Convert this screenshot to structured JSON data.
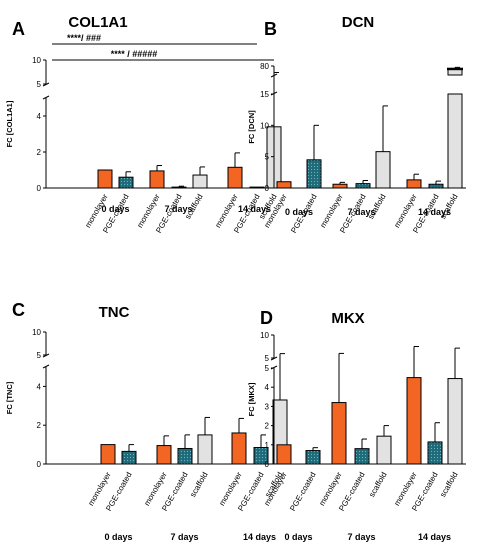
{
  "colors": {
    "monolayer": "#f26522",
    "pge": "#1f6b7a",
    "scaffold": "#e2e2e2",
    "edge": "#000000"
  },
  "chart_data": [
    {
      "type": "bar",
      "panel_letter": "A",
      "title": "COL1A1",
      "ylabel": "FC [COL1A1]",
      "axis": {
        "lower_range": [
          0,
          5
        ],
        "lower_ticks": [
          0,
          2,
          4
        ],
        "upper_range": [
          5,
          10
        ],
        "upper_ticks": [
          5,
          10
        ]
      },
      "groups": [
        {
          "label": "0 days",
          "bars": [
            {
              "category": "monolayer",
              "kind": "monolayer",
              "value": 1.0,
              "error": 0
            },
            {
              "category": "PGE-coated",
              "kind": "pge",
              "value": 0.6,
              "error": 0.3
            }
          ]
        },
        {
          "label": "7 days",
          "bars": [
            {
              "category": "monolayer",
              "kind": "monolayer",
              "value": 0.95,
              "error": 0.3
            },
            {
              "category": "PGE-coated",
              "kind": "pge",
              "value": 0.05,
              "error": 0.05
            },
            {
              "category": "scaffold",
              "kind": "scaffold",
              "value": 0.72,
              "error": 0.45
            }
          ]
        },
        {
          "label": "14 days",
          "bars": [
            {
              "category": "monolayer",
              "kind": "monolayer",
              "value": 1.15,
              "error": 0.8
            },
            {
              "category": "PGE-coated",
              "kind": "pge",
              "value": 0.05,
              "error": 0
            },
            {
              "category": "scaffold",
              "kind": "scaffold",
              "value": 3.4,
              "error": 4.0
            }
          ]
        }
      ],
      "annotations": [
        {
          "text": "****/ ###",
          "from_bar": 0,
          "to_bar": 6
        },
        {
          "text": "**** / #####",
          "from_bar": 0,
          "to_bar": 7
        }
      ]
    },
    {
      "type": "bar",
      "panel_letter": "B",
      "title": "DCN",
      "ylabel": "FC [DCN]",
      "axis": {
        "lower_range": [
          0,
          15
        ],
        "lower_ticks": [
          0,
          5,
          10,
          15
        ],
        "upper_range": [
          60,
          80
        ],
        "upper_ticks": [
          80
        ]
      },
      "groups": [
        {
          "label": "0 days",
          "bars": [
            {
              "category": "monolayer",
              "kind": "monolayer",
              "value": 1.0,
              "error": 0
            },
            {
              "category": "PGE-coated",
              "kind": "pge",
              "value": 4.5,
              "error": 5.5
            }
          ]
        },
        {
          "label": "7 days",
          "bars": [
            {
              "category": "monolayer",
              "kind": "monolayer",
              "value": 0.6,
              "error": 0.3
            },
            {
              "category": "PGE-coated",
              "kind": "pge",
              "value": 0.7,
              "error": 0.5
            },
            {
              "category": "scaffold",
              "kind": "scaffold",
              "value": 5.8,
              "error": 7.3
            }
          ]
        },
        {
          "label": "14 days",
          "bars": [
            {
              "category": "monolayer",
              "kind": "monolayer",
              "value": 1.3,
              "error": 0.9
            },
            {
              "category": "PGE-coated",
              "kind": "pge",
              "value": 0.6,
              "error": 0.5
            },
            {
              "category": "scaffold",
              "kind": "scaffold",
              "value": 74,
              "error": 3
            }
          ]
        }
      ]
    },
    {
      "type": "bar",
      "panel_letter": "C",
      "title": "TNC",
      "ylabel": "FC [TNC]",
      "axis": {
        "lower_range": [
          0,
          5
        ],
        "lower_ticks": [
          0,
          2,
          4
        ],
        "upper_range": [
          5,
          10
        ],
        "upper_ticks": [
          5,
          10
        ]
      },
      "groups": [
        {
          "label": "0 days",
          "bars": [
            {
              "category": "monolayer",
              "kind": "monolayer",
              "value": 1.0,
              "error": 0
            },
            {
              "category": "PGE-coated",
              "kind": "pge",
              "value": 0.65,
              "error": 0.35
            }
          ]
        },
        {
          "label": "7 days",
          "bars": [
            {
              "category": "monolayer",
              "kind": "monolayer",
              "value": 0.95,
              "error": 0.5
            },
            {
              "category": "PGE-coated",
              "kind": "pge",
              "value": 0.8,
              "error": 0.7
            },
            {
              "category": "scaffold",
              "kind": "scaffold",
              "value": 1.5,
              "error": 0.9
            }
          ]
        },
        {
          "label": "14 days",
          "bars": [
            {
              "category": "monolayer",
              "kind": "monolayer",
              "value": 1.6,
              "error": 0.75
            },
            {
              "category": "PGE-coated",
              "kind": "pge",
              "value": 0.85,
              "error": 0.65
            },
            {
              "category": "scaffold",
              "kind": "scaffold",
              "value": 3.3,
              "error": 2.0
            }
          ]
        }
      ]
    },
    {
      "type": "bar",
      "panel_letter": "D",
      "title": "MKX",
      "ylabel": "FC [MKX]",
      "axis": {
        "lower_range": [
          0,
          5
        ],
        "lower_ticks": [
          0,
          1,
          2,
          3,
          4,
          5
        ],
        "upper_range": [
          5,
          10
        ],
        "upper_ticks": [
          5,
          10
        ]
      },
      "groups": [
        {
          "label": "0 days",
          "bars": [
            {
              "category": "monolayer",
              "kind": "monolayer",
              "value": 1.0,
              "error": 0
            },
            {
              "category": "PGE-coated",
              "kind": "pge",
              "value": 0.7,
              "error": 0.15
            }
          ]
        },
        {
          "label": "7 days",
          "bars": [
            {
              "category": "monolayer",
              "kind": "monolayer",
              "value": 3.2,
              "error": 2.8
            },
            {
              "category": "PGE-coated",
              "kind": "pge",
              "value": 0.8,
              "error": 0.5
            },
            {
              "category": "scaffold",
              "kind": "scaffold",
              "value": 1.45,
              "error": 0.55
            }
          ]
        },
        {
          "label": "14 days",
          "bars": [
            {
              "category": "monolayer",
              "kind": "monolayer",
              "value": 4.5,
              "error": 3.0
            },
            {
              "category": "PGE-coated",
              "kind": "pge",
              "value": 1.15,
              "error": 1.0
            },
            {
              "category": "scaffold",
              "kind": "scaffold",
              "value": 4.45,
              "error": 2.7
            }
          ]
        }
      ]
    }
  ]
}
